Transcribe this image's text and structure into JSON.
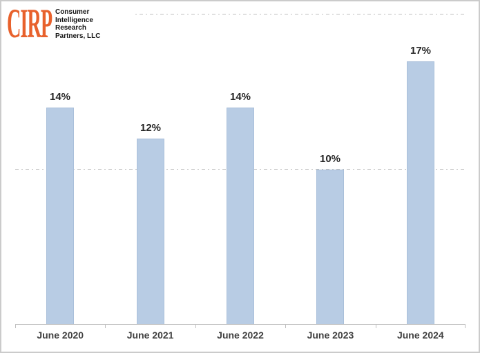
{
  "logo": {
    "acronym": "CIRP",
    "company_lines": [
      "Consumer",
      "Intelligence",
      "Research",
      "Partners, LLC"
    ],
    "brand_color": "#E8612C",
    "text_color": "#141414"
  },
  "chart_data": {
    "type": "bar",
    "title": "",
    "xlabel": "",
    "ylabel": "",
    "categories": [
      "June 2020",
      "June 2021",
      "June 2022",
      "June 2023",
      "June 2024"
    ],
    "values": [
      14,
      12,
      14,
      10,
      17
    ],
    "labels": [
      "14%",
      "12%",
      "14%",
      "10%",
      "17%"
    ],
    "ylim": [
      0,
      20.5
    ],
    "gridlines": [
      10,
      20
    ],
    "gridline_style": "dash-dot",
    "grid": "horizontal-only",
    "legend": "none",
    "bar_color": "#B8CCE4",
    "bar_border_color": "#A9BFDA",
    "value_label_color": "#262626",
    "category_label_color": "#404040",
    "axis_color": "#BFBFBF",
    "gridline_color": "#BDBDBD"
  }
}
